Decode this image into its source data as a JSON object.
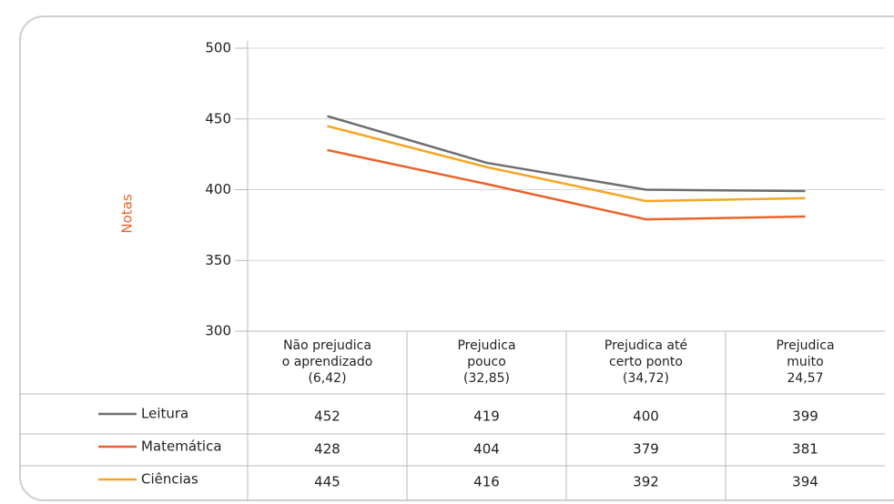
{
  "chart_data": {
    "type": "line",
    "y_label": "Notas",
    "categories": [
      [
        "Não prejudica",
        "o aprendizado",
        "(6,42)"
      ],
      [
        "Prejudica",
        "pouco",
        "(32,85)"
      ],
      [
        "Prejudica até",
        "certo ponto",
        "(34,72)"
      ],
      [
        "Prejudica",
        "muito",
        "24,57"
      ]
    ],
    "series": [
      {
        "name": "Leitura",
        "color": "#6d6e71",
        "values": [
          452,
          419,
          400,
          399
        ]
      },
      {
        "name": "Matemática",
        "color": "#e8632b",
        "values": [
          428,
          404,
          379,
          381
        ]
      },
      {
        "name": "Ciências",
        "color": "#f5a623",
        "values": [
          445,
          416,
          392,
          394
        ]
      }
    ],
    "ylim": [
      300,
      500
    ],
    "yticks": [
      300,
      350,
      400,
      450,
      500
    ],
    "grid": true
  }
}
